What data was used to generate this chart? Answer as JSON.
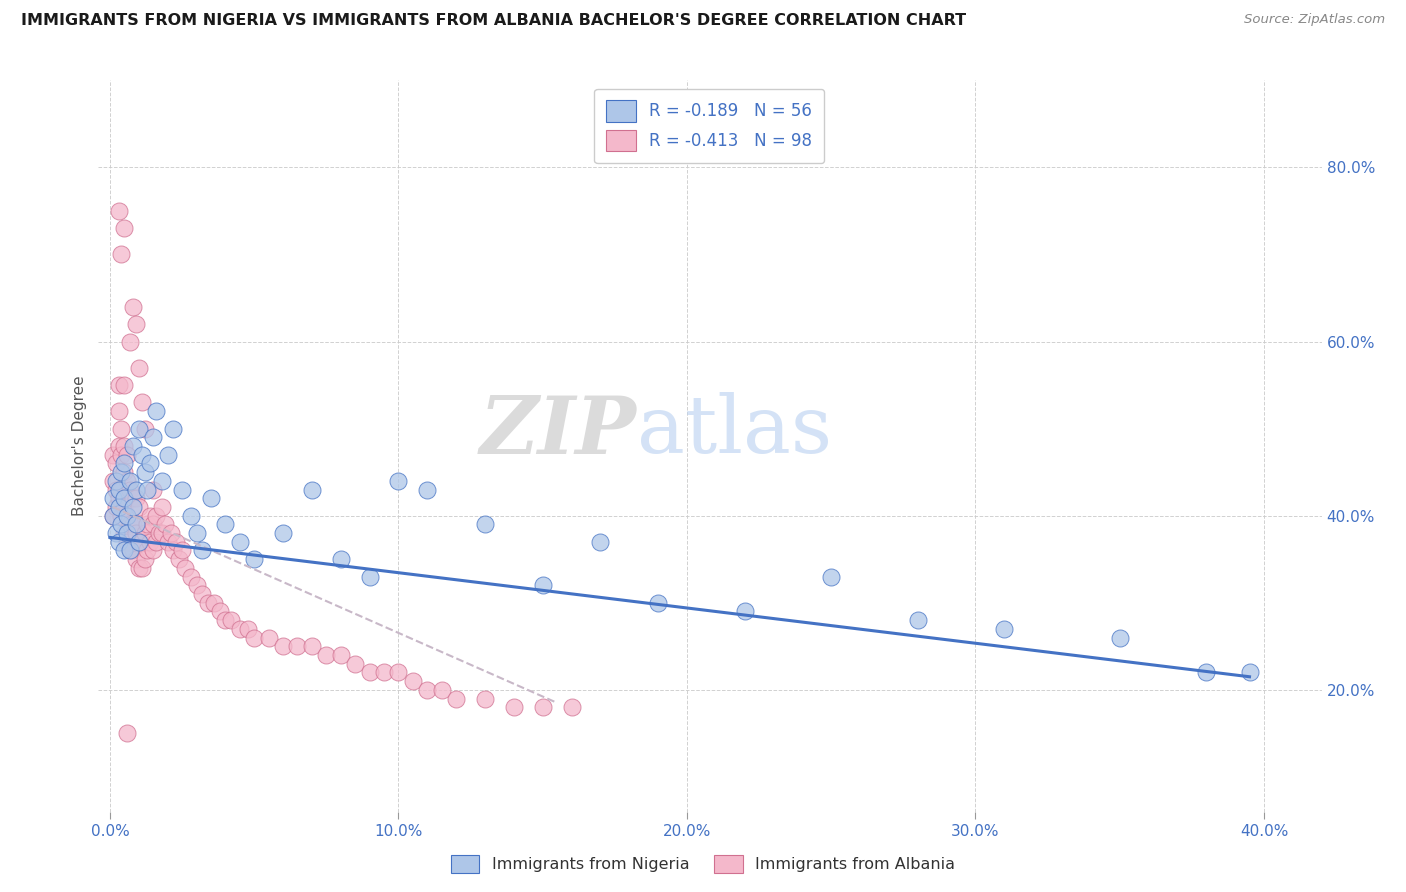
{
  "title": "IMMIGRANTS FROM NIGERIA VS IMMIGRANTS FROM ALBANIA BACHELOR'S DEGREE CORRELATION CHART",
  "source": "Source: ZipAtlas.com",
  "ylabel": "Bachelor's Degree",
  "x_tick_labels": [
    "0.0%",
    "10.0%",
    "20.0%",
    "30.0%",
    "40.0%"
  ],
  "x_tick_positions": [
    0.0,
    0.1,
    0.2,
    0.3,
    0.4
  ],
  "y_tick_labels_right": [
    "20.0%",
    "40.0%",
    "60.0%",
    "80.0%"
  ],
  "y_tick_positions_right": [
    0.2,
    0.4,
    0.6,
    0.8
  ],
  "xlim": [
    -0.004,
    0.42
  ],
  "ylim": [
    0.06,
    0.9
  ],
  "legend_nigeria": "R = -0.189   N = 56",
  "legend_albania": "R = -0.413   N = 98",
  "legend_label_nigeria": "Immigrants from Nigeria",
  "legend_label_albania": "Immigrants from Albania",
  "color_nigeria_fill": "#aec6e8",
  "color_albania_fill": "#f4b8cb",
  "color_nigeria_edge": "#4472c4",
  "color_albania_edge": "#d07090",
  "color_nigeria_line": "#4472c4",
  "color_albania_line": "#c8b8c8",
  "color_text_blue": "#4472c4",
  "watermark_zip": "ZIP",
  "watermark_atlas": "atlas",
  "nigeria_x": [
    0.001,
    0.001,
    0.002,
    0.002,
    0.003,
    0.003,
    0.003,
    0.004,
    0.004,
    0.005,
    0.005,
    0.005,
    0.006,
    0.006,
    0.007,
    0.007,
    0.008,
    0.008,
    0.009,
    0.009,
    0.01,
    0.01,
    0.011,
    0.012,
    0.013,
    0.014,
    0.015,
    0.016,
    0.018,
    0.02,
    0.022,
    0.025,
    0.028,
    0.03,
    0.032,
    0.035,
    0.04,
    0.045,
    0.05,
    0.06,
    0.07,
    0.08,
    0.09,
    0.1,
    0.11,
    0.13,
    0.15,
    0.17,
    0.19,
    0.22,
    0.25,
    0.28,
    0.31,
    0.35,
    0.38,
    0.395
  ],
  "nigeria_y": [
    0.4,
    0.42,
    0.38,
    0.44,
    0.41,
    0.37,
    0.43,
    0.39,
    0.45,
    0.36,
    0.42,
    0.46,
    0.4,
    0.38,
    0.44,
    0.36,
    0.41,
    0.48,
    0.43,
    0.39,
    0.37,
    0.5,
    0.47,
    0.45,
    0.43,
    0.46,
    0.49,
    0.52,
    0.44,
    0.47,
    0.5,
    0.43,
    0.4,
    0.38,
    0.36,
    0.42,
    0.39,
    0.37,
    0.35,
    0.38,
    0.43,
    0.35,
    0.33,
    0.44,
    0.43,
    0.39,
    0.32,
    0.37,
    0.3,
    0.29,
    0.33,
    0.28,
    0.27,
    0.26,
    0.22,
    0.22
  ],
  "albania_x": [
    0.001,
    0.001,
    0.001,
    0.002,
    0.002,
    0.002,
    0.003,
    0.003,
    0.003,
    0.003,
    0.004,
    0.004,
    0.004,
    0.004,
    0.005,
    0.005,
    0.005,
    0.005,
    0.005,
    0.006,
    0.006,
    0.006,
    0.006,
    0.007,
    0.007,
    0.007,
    0.008,
    0.008,
    0.008,
    0.009,
    0.009,
    0.009,
    0.01,
    0.01,
    0.01,
    0.011,
    0.011,
    0.012,
    0.012,
    0.013,
    0.013,
    0.014,
    0.014,
    0.015,
    0.015,
    0.015,
    0.016,
    0.016,
    0.017,
    0.018,
    0.018,
    0.019,
    0.02,
    0.021,
    0.022,
    0.023,
    0.024,
    0.025,
    0.026,
    0.028,
    0.03,
    0.032,
    0.034,
    0.036,
    0.038,
    0.04,
    0.042,
    0.045,
    0.048,
    0.05,
    0.055,
    0.06,
    0.065,
    0.07,
    0.075,
    0.08,
    0.085,
    0.09,
    0.095,
    0.1,
    0.105,
    0.11,
    0.115,
    0.12,
    0.13,
    0.14,
    0.15,
    0.16,
    0.007,
    0.008,
    0.009,
    0.01,
    0.011,
    0.012,
    0.004,
    0.005,
    0.003,
    0.006
  ],
  "albania_y": [
    0.4,
    0.44,
    0.47,
    0.41,
    0.43,
    0.46,
    0.42,
    0.48,
    0.52,
    0.55,
    0.4,
    0.43,
    0.47,
    0.5,
    0.38,
    0.41,
    0.45,
    0.48,
    0.55,
    0.37,
    0.4,
    0.44,
    0.47,
    0.36,
    0.39,
    0.43,
    0.36,
    0.39,
    0.42,
    0.35,
    0.38,
    0.42,
    0.34,
    0.37,
    0.41,
    0.34,
    0.37,
    0.35,
    0.38,
    0.36,
    0.39,
    0.37,
    0.4,
    0.36,
    0.39,
    0.43,
    0.37,
    0.4,
    0.38,
    0.38,
    0.41,
    0.39,
    0.37,
    0.38,
    0.36,
    0.37,
    0.35,
    0.36,
    0.34,
    0.33,
    0.32,
    0.31,
    0.3,
    0.3,
    0.29,
    0.28,
    0.28,
    0.27,
    0.27,
    0.26,
    0.26,
    0.25,
    0.25,
    0.25,
    0.24,
    0.24,
    0.23,
    0.22,
    0.22,
    0.22,
    0.21,
    0.2,
    0.2,
    0.19,
    0.19,
    0.18,
    0.18,
    0.18,
    0.6,
    0.64,
    0.62,
    0.57,
    0.53,
    0.5,
    0.7,
    0.73,
    0.75,
    0.15
  ],
  "nigeria_line_x": [
    0.0,
    0.395
  ],
  "nigeria_line_y": [
    0.375,
    0.215
  ],
  "albania_line_x": [
    0.001,
    0.155
  ],
  "albania_line_y": [
    0.41,
    0.185
  ]
}
